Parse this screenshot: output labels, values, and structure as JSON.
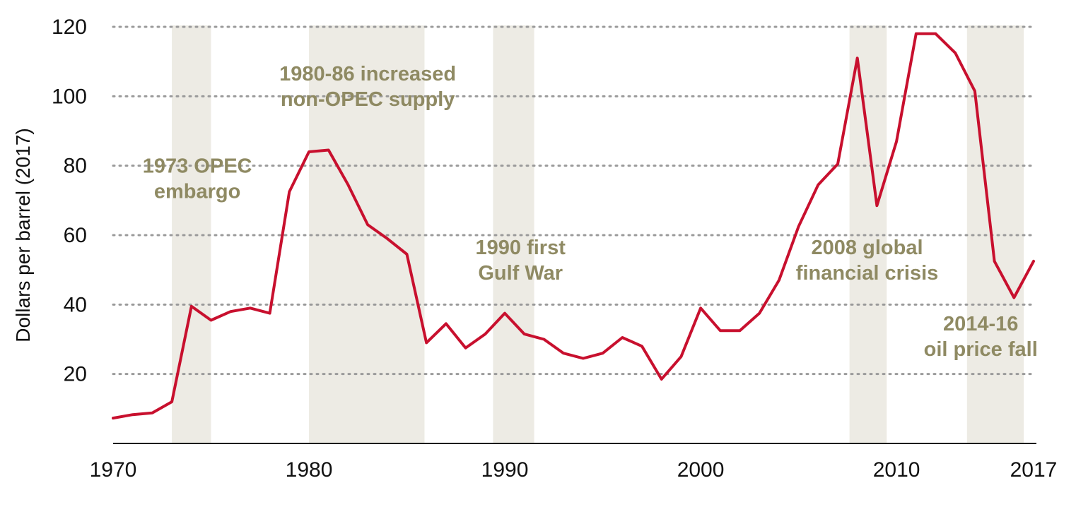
{
  "chart_data": {
    "type": "line",
    "title": "",
    "xlabel": "",
    "ylabel": "Dollars per barrel (2017)",
    "xlim": [
      1970,
      2017
    ],
    "ylim": [
      0,
      120
    ],
    "x_ticks": [
      "1970",
      "1980",
      "1990",
      "2000",
      "2010",
      "2017"
    ],
    "y_ticks": [
      "20",
      "40",
      "60",
      "80",
      "100",
      "120"
    ],
    "grid": "horizontal dotted",
    "legend": "none",
    "colors": {
      "line": "#c8102e",
      "shade": "#edebe4",
      "annotation": "#8f8a63",
      "grid": "#9a9a9a"
    },
    "series": [
      {
        "x": [
          1970,
          1971,
          1972,
          1973,
          1974,
          1975,
          1976,
          1977,
          1978,
          1979,
          1980,
          1981,
          1982,
          1983,
          1984,
          1985,
          1986,
          1987,
          1988,
          1989,
          1990,
          1991,
          1992,
          1993,
          1994,
          1995,
          1996,
          1997,
          1998,
          1999,
          2000,
          2001,
          2002,
          2003,
          2004,
          2005,
          2006,
          2007,
          2008,
          2009,
          2010,
          2011,
          2012,
          2013,
          2014,
          2015,
          2016,
          2017
        ],
        "values": [
          7.3,
          8.3,
          8.8,
          12,
          39.5,
          35.5,
          38,
          39,
          37.5,
          72.5,
          84,
          84.5,
          74.5,
          63,
          59,
          54.5,
          29,
          34.5,
          27.5,
          31.5,
          37.5,
          31.5,
          30,
          26,
          24.5,
          26,
          30.5,
          28,
          18.5,
          25,
          39,
          32.5,
          32.5,
          37.5,
          47,
          62.5,
          74.5,
          80.5,
          111,
          68.5,
          87,
          118,
          118,
          112.5,
          101.5,
          52.5,
          42,
          52.5
        ]
      }
    ],
    "shaded_periods": [
      [
        1973,
        1975
      ],
      [
        1980,
        1985.9
      ],
      [
        1989.4,
        1991.5
      ],
      [
        2007.6,
        2009.5
      ],
      [
        2013.6,
        2016.5
      ]
    ],
    "annotations": [
      {
        "lines": [
          "1973 OPEC",
          "embargo"
        ],
        "x": 1974.3,
        "y": 78
      },
      {
        "lines": [
          "1980-86 increased",
          "non-OPEC supply"
        ],
        "x": 1983.0,
        "y": 104.5
      },
      {
        "lines": [
          "1990 first",
          "Gulf War"
        ],
        "x": 1990.8,
        "y": 54.5
      },
      {
        "lines": [
          "2008 global",
          "financial crisis"
        ],
        "x": 2008.5,
        "y": 54.5
      },
      {
        "lines": [
          "2014-16",
          "oil price fall"
        ],
        "x": 2014.3,
        "y": 32.5
      }
    ]
  }
}
